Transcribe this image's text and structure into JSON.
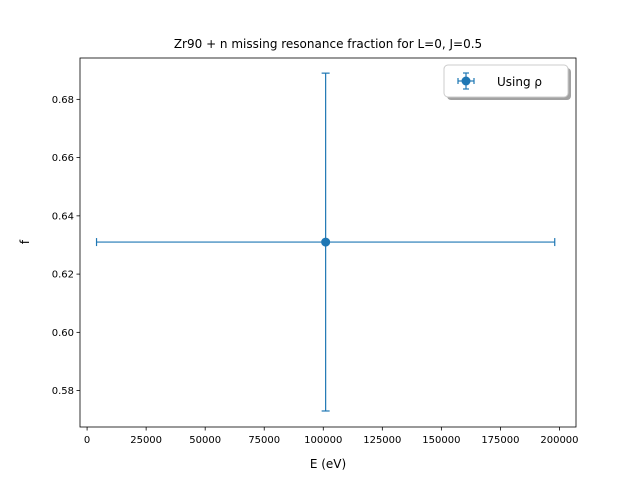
{
  "chart_data": {
    "type": "scatter",
    "title": "Zr90 + n missing resonance fraction for L=0, J=0.5",
    "xlabel": "E (eV)",
    "ylabel": "f",
    "xlim": [
      -3000,
      207000
    ],
    "ylim": [
      0.5675,
      0.6942
    ],
    "x_ticks": [
      0,
      25000,
      50000,
      75000,
      100000,
      125000,
      150000,
      175000,
      200000
    ],
    "y_ticks": [
      0.58,
      0.6,
      0.62,
      0.64,
      0.66,
      0.68
    ],
    "series": [
      {
        "name": "Using ρ",
        "color": "#1f77b4",
        "points": [
          {
            "x": 101000,
            "y": 0.631,
            "xerr": 97000,
            "yerr": 0.058
          }
        ]
      }
    ],
    "legend": {
      "placement": "top-right",
      "entries": [
        "Using ρ"
      ]
    },
    "grid": false
  }
}
